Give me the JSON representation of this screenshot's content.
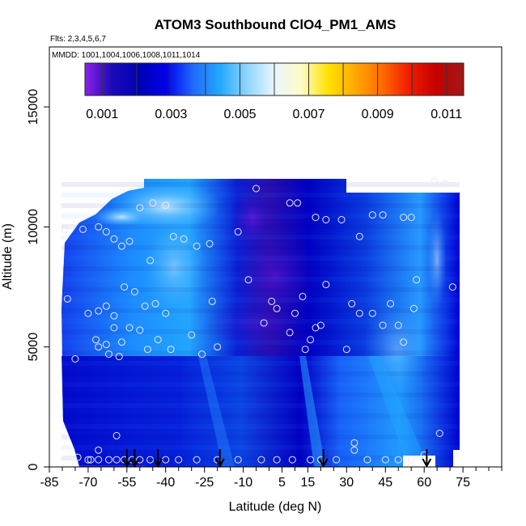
{
  "chart_data": {
    "type": "heatmap",
    "title": "ATOM3 Southbound ClO4_PM1_AMS",
    "flights_label": "Flts: 2,3,4,5,6,7",
    "dates_label": "MMDD: 1001,1004,1006,1008,1011,1014",
    "xlabel": "Latitude (deg N)",
    "ylabel": "Altitude (m)",
    "xlim": [
      -85,
      90
    ],
    "ylim": [
      0,
      17500
    ],
    "x_ticks": [
      -85,
      -70,
      -55,
      -40,
      -25,
      -10,
      5,
      15,
      30,
      45,
      60,
      75
    ],
    "y_ticks": [
      0,
      5000,
      10000,
      15000
    ],
    "colorbar": {
      "min": 0.0005,
      "max": 0.0115,
      "tick_values": [
        0.001,
        0.003,
        0.005,
        0.007,
        0.009,
        0.011
      ],
      "tick_labels": [
        "0.001",
        "0.003",
        "0.005",
        "0.007",
        "0.009",
        "0.011"
      ],
      "colors": [
        "#8b22e6",
        "#1b0ab8",
        "#0000b4",
        "#0000e8",
        "#1f6bff",
        "#23a8ff",
        "#8fd5ff",
        "#eaf6ff",
        "#fffbc8",
        "#ffe100",
        "#ffa800",
        "#ff6a00",
        "#ef1a00",
        "#c40000",
        "#a01818"
      ]
    },
    "data_extent": {
      "lat_min": -80,
      "lat_max": 72,
      "alt_min": 200,
      "alt_max": 12500
    },
    "flight_markers_lat": [
      -55,
      -52,
      -43,
      -19,
      21,
      61
    ],
    "samples": [
      [
        -79,
        9900
      ],
      [
        -72,
        9900
      ],
      [
        -66,
        10000
      ],
      [
        -63,
        9800
      ],
      [
        -60,
        9500
      ],
      [
        -57,
        9200
      ],
      [
        -54,
        9400
      ],
      [
        -50,
        10800
      ],
      [
        -45,
        11000
      ],
      [
        -40,
        10900
      ],
      [
        -70,
        6400
      ],
      [
        -66,
        6500
      ],
      [
        -63,
        6700
      ],
      [
        -60,
        6300
      ],
      [
        -56,
        7500
      ],
      [
        -52,
        7300
      ],
      [
        -48,
        6700
      ],
      [
        -44,
        6800
      ],
      [
        -40,
        6400
      ],
      [
        -46,
        8600
      ],
      [
        -67,
        5300
      ],
      [
        -66,
        5000
      ],
      [
        -63,
        5100
      ],
      [
        -60,
        5800
      ],
      [
        -57,
        5200
      ],
      [
        -54,
        5800
      ],
      [
        -50,
        5700
      ],
      [
        -47,
        4900
      ],
      [
        -43,
        5300
      ],
      [
        -38,
        4900
      ],
      [
        -78,
        7000
      ],
      [
        -75,
        4500
      ],
      [
        -62,
        4700
      ],
      [
        -58,
        4600
      ],
      [
        -37,
        9600
      ],
      [
        -33,
        9500
      ],
      [
        -28,
        9200
      ],
      [
        -23,
        9300
      ],
      [
        -12,
        9800
      ],
      [
        -8,
        7800
      ],
      [
        -30,
        5500
      ],
      [
        -26,
        4700
      ],
      [
        -20,
        5000
      ],
      [
        -22,
        6900
      ],
      [
        1,
        6900
      ],
      [
        -2,
        6000
      ],
      [
        3,
        6600
      ],
      [
        8,
        5600
      ],
      [
        10,
        6400
      ],
      [
        13,
        7100
      ],
      [
        -5,
        11600
      ],
      [
        8,
        11000
      ],
      [
        11,
        11000
      ],
      [
        18,
        10400
      ],
      [
        22,
        10300
      ],
      [
        28,
        10300
      ],
      [
        35,
        9600
      ],
      [
        40,
        10500
      ],
      [
        44,
        10500
      ],
      [
        52,
        10400
      ],
      [
        55,
        10400
      ],
      [
        57,
        7800
      ],
      [
        47,
        6800
      ],
      [
        44,
        5900
      ],
      [
        40,
        6400
      ],
      [
        35,
        6400
      ],
      [
        30,
        4900
      ],
      [
        32,
        6800
      ],
      [
        22,
        7600
      ],
      [
        18,
        5800
      ],
      [
        16,
        5300
      ],
      [
        14,
        4900
      ],
      [
        20,
        5900
      ],
      [
        50,
        5900
      ],
      [
        52,
        5200
      ],
      [
        56,
        6600
      ],
      [
        64,
        11900
      ],
      [
        68,
        11800
      ],
      [
        71,
        7500
      ],
      [
        66,
        1400
      ],
      [
        -69,
        300
      ],
      [
        -66,
        300
      ],
      [
        -62,
        300
      ],
      [
        -59,
        300
      ],
      [
        -56,
        300
      ],
      [
        -53,
        300
      ],
      [
        -50,
        300
      ],
      [
        -46,
        300
      ],
      [
        -40,
        300
      ],
      [
        -35,
        300
      ],
      [
        -28,
        300
      ],
      [
        -20,
        300
      ],
      [
        -12,
        300
      ],
      [
        -3,
        300
      ],
      [
        3,
        300
      ],
      [
        9,
        300
      ],
      [
        16,
        300
      ],
      [
        20,
        300
      ],
      [
        26,
        300
      ],
      [
        33,
        700
      ],
      [
        33,
        1000
      ],
      [
        38,
        300
      ],
      [
        45,
        300
      ],
      [
        50,
        300
      ],
      [
        55,
        300
      ],
      [
        60,
        500
      ],
      [
        -74,
        400
      ],
      [
        -70,
        300
      ],
      [
        -66,
        700
      ],
      [
        -59,
        1300
      ]
    ]
  }
}
